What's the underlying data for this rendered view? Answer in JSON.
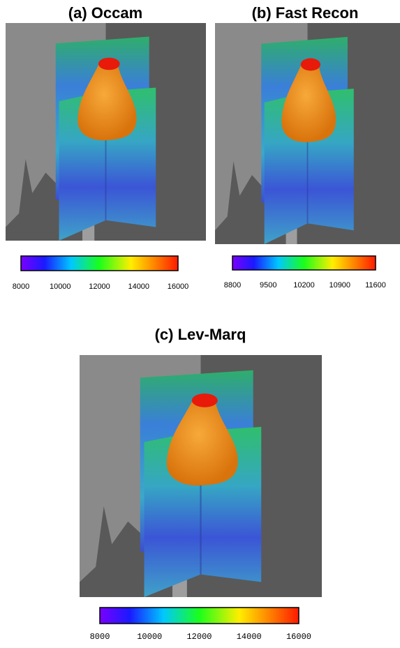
{
  "panels": [
    {
      "title": "(a) Occam",
      "colorbar_ticks": [
        8000,
        10000,
        12000,
        14000,
        16000
      ]
    },
    {
      "title": "(b) Fast Recon",
      "colorbar_ticks": [
        8800,
        9500,
        10200,
        10900,
        11600
      ]
    },
    {
      "title": "(c) Lev-Marq",
      "colorbar_ticks": [
        8000,
        10000,
        12000,
        14000,
        16000
      ]
    }
  ]
}
